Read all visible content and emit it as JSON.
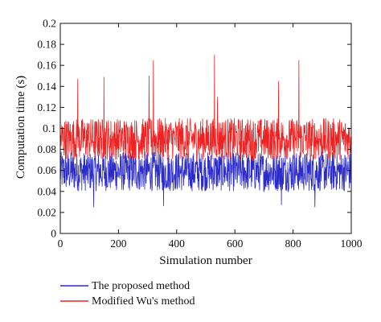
{
  "chart_data": {
    "type": "line",
    "title": "",
    "xlabel": "Simulation number",
    "ylabel": "Computation time (s)",
    "xlim": [
      0,
      1000
    ],
    "ylim": [
      0,
      0.2
    ],
    "xticks": [
      "0",
      "200",
      "400",
      "600",
      "800",
      "1000"
    ],
    "yticks": [
      "0",
      "0.02",
      "0.04",
      "0.06",
      "0.08",
      "0.1",
      "0.12",
      "0.14",
      "0.16",
      "0.18",
      "0.2"
    ],
    "grid": false,
    "legend_position": "bottom-left, below plot",
    "series": [
      {
        "name": "The proposed method",
        "color": "#2b2bc9",
        "typical_range": [
          0.04,
          0.078
        ],
        "dips": [
          [
            115,
            0.025
          ],
          [
            355,
            0.026
          ],
          [
            760,
            0.027
          ],
          [
            875,
            0.025
          ]
        ]
      },
      {
        "name": "Modified Wu's method",
        "color": "#ee2222",
        "typical_range": [
          0.07,
          0.11
        ],
        "spikes": [
          [
            60,
            0.147
          ],
          [
            150,
            0.149
          ],
          [
            305,
            0.15
          ],
          [
            320,
            0.165
          ],
          [
            530,
            0.17
          ],
          [
            540,
            0.13
          ],
          [
            750,
            0.145
          ],
          [
            820,
            0.165
          ]
        ]
      }
    ]
  }
}
